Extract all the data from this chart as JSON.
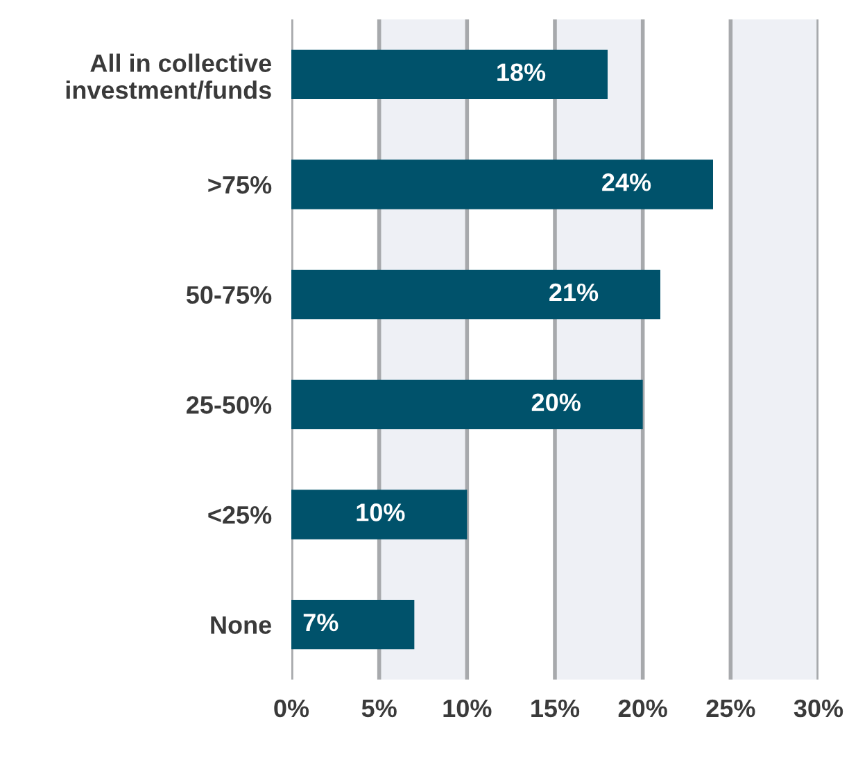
{
  "chart_data": {
    "type": "bar",
    "orientation": "horizontal",
    "categories": [
      "All in collective\ninvestment/funds",
      ">75%",
      "50-75%",
      "25-50%",
      "<25%",
      "None"
    ],
    "values": [
      18,
      24,
      21,
      20,
      10,
      7
    ],
    "value_labels": [
      "18%",
      "24%",
      "21%",
      "20%",
      "10%",
      "7%"
    ],
    "color": "#00526b",
    "xlim": [
      0,
      30
    ],
    "xticks": [
      {
        "value": 0,
        "label": "0%"
      },
      {
        "value": 5,
        "label": "5%"
      },
      {
        "value": 10,
        "label": "10%"
      },
      {
        "value": 15,
        "label": "15%"
      },
      {
        "value": 20,
        "label": "20%"
      },
      {
        "value": 25,
        "label": "25%"
      },
      {
        "value": 30,
        "label": "30%"
      }
    ],
    "bands": [
      {
        "axis": "x",
        "from": 5,
        "to": 10,
        "color": "#eef0f5"
      },
      {
        "axis": "x",
        "from": 15,
        "to": 20,
        "color": "#eef0f5"
      },
      {
        "axis": "x",
        "from": 25,
        "to": 30,
        "color": "#eef0f5"
      }
    ],
    "grid": "x",
    "legend": false
  }
}
